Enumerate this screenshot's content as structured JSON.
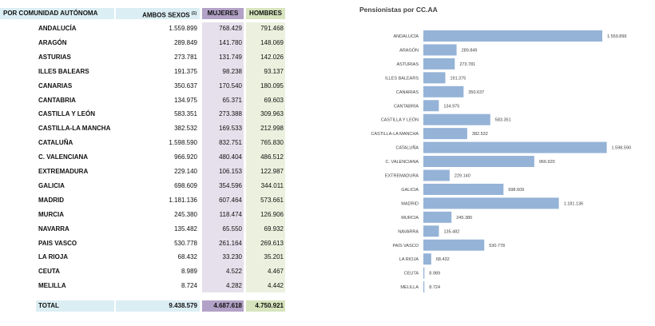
{
  "table": {
    "headers": {
      "region": "POR COMUNIDAD AUTÓNOMA",
      "ambos": "AMBOS SEXOS",
      "ambos_note": "(1)",
      "mujeres": "MUJERES",
      "hombres": "HOMBRES"
    },
    "rows": [
      {
        "name": "ANDALUCÍA",
        "ambos": "1.559.899",
        "mujeres": "768.429",
        "hombres": "791.468"
      },
      {
        "name": "ARAGÓN",
        "ambos": "289.849",
        "mujeres": "141.780",
        "hombres": "148.069"
      },
      {
        "name": "ASTURIAS",
        "ambos": "273.781",
        "mujeres": "131.749",
        "hombres": "142.026"
      },
      {
        "name": "ILLES BALEARS",
        "ambos": "191.375",
        "mujeres": "98.238",
        "hombres": "93.137"
      },
      {
        "name": "CANARIAS",
        "ambos": "350.637",
        "mujeres": "170.540",
        "hombres": "180.095"
      },
      {
        "name": "CANTABRIA",
        "ambos": "134.975",
        "mujeres": "65.371",
        "hombres": "69.603"
      },
      {
        "name": "CASTILLA Y LEÓN",
        "ambos": "583.351",
        "mujeres": "273.388",
        "hombres": "309.963"
      },
      {
        "name": "CASTILLA-LA MANCHA",
        "ambos": "382.532",
        "mujeres": "169.533",
        "hombres": "212.998"
      },
      {
        "name": "CATALUÑA",
        "ambos": "1.598.590",
        "mujeres": "832.751",
        "hombres": "765.830"
      },
      {
        "name": "C. VALENCIANA",
        "ambos": "966.920",
        "mujeres": "480.404",
        "hombres": "486.512"
      },
      {
        "name": "EXTREMADURA",
        "ambos": "229.140",
        "mujeres": "106.153",
        "hombres": "122.987"
      },
      {
        "name": "GALICIA",
        "ambos": "698.609",
        "mujeres": "354.596",
        "hombres": "344.011"
      },
      {
        "name": "MADRID",
        "ambos": "1.181.136",
        "mujeres": "607.464",
        "hombres": "573.661"
      },
      {
        "name": "MURCIA",
        "ambos": "245.380",
        "mujeres": "118.474",
        "hombres": "126.906"
      },
      {
        "name": "NAVARRA",
        "ambos": "135.482",
        "mujeres": "65.550",
        "hombres": "69.932"
      },
      {
        "name": "PAIS VASCO",
        "ambos": "530.778",
        "mujeres": "261.164",
        "hombres": "269.613"
      },
      {
        "name": "LA RIOJA",
        "ambos": "68.432",
        "mujeres": "33.230",
        "hombres": "35.201"
      },
      {
        "name": "CEUTA",
        "ambos": "8.989",
        "mujeres": "4.522",
        "hombres": "4.467"
      },
      {
        "name": "MELILLA",
        "ambos": "8.724",
        "mujeres": "4.282",
        "hombres": "4.442"
      }
    ],
    "total": {
      "name": "TOTAL",
      "ambos": "9.438.579",
      "mujeres": "4.687.618",
      "hombres": "4.750.921"
    }
  },
  "colors": {
    "header_blue": "#dbeef4",
    "mujeres_header": "#b3a2c7",
    "mujeres_bg": "#e6e0ec",
    "hombres_header": "#d7e4bd",
    "hombres_bg": "#ebf1de",
    "bar": "#95b3d7"
  },
  "chart_data": {
    "type": "bar",
    "orientation": "horizontal",
    "title": "Pensionistas por CC.AA",
    "categories": [
      "ANDALUCÍA",
      "ARAGÓN",
      "ASTURIAS",
      "ILLES BALEARS",
      "CANARIAS",
      "CANTABRIA",
      "CASTILLA Y LEÓN",
      "CASTILLA-LA MANCHA",
      "CATALUÑA",
      "C. VALENCIANA",
      "EXTREMADURA",
      "GALICIA",
      "MADRID",
      "MURCIA",
      "NAVARRA",
      "PAIS VASCO",
      "LA RIOJA",
      "CEUTA",
      "MELILLA"
    ],
    "values": [
      1559899,
      289849,
      273781,
      191375,
      350637,
      134975,
      583351,
      382532,
      1598590,
      966920,
      229140,
      698609,
      1181136,
      245380,
      135482,
      530778,
      68432,
      8989,
      8724
    ],
    "labels": [
      "1.559.899",
      "289.849",
      "273.781",
      "191.375",
      "350.637",
      "134.975",
      "583.351",
      "382.532",
      "1.598.590",
      "966.920",
      "229.140",
      "698.609",
      "1.181.136",
      "245.380",
      "135.482",
      "530.778",
      "68.432",
      "8.989",
      "8.724"
    ],
    "grid": false,
    "legend": "none"
  }
}
